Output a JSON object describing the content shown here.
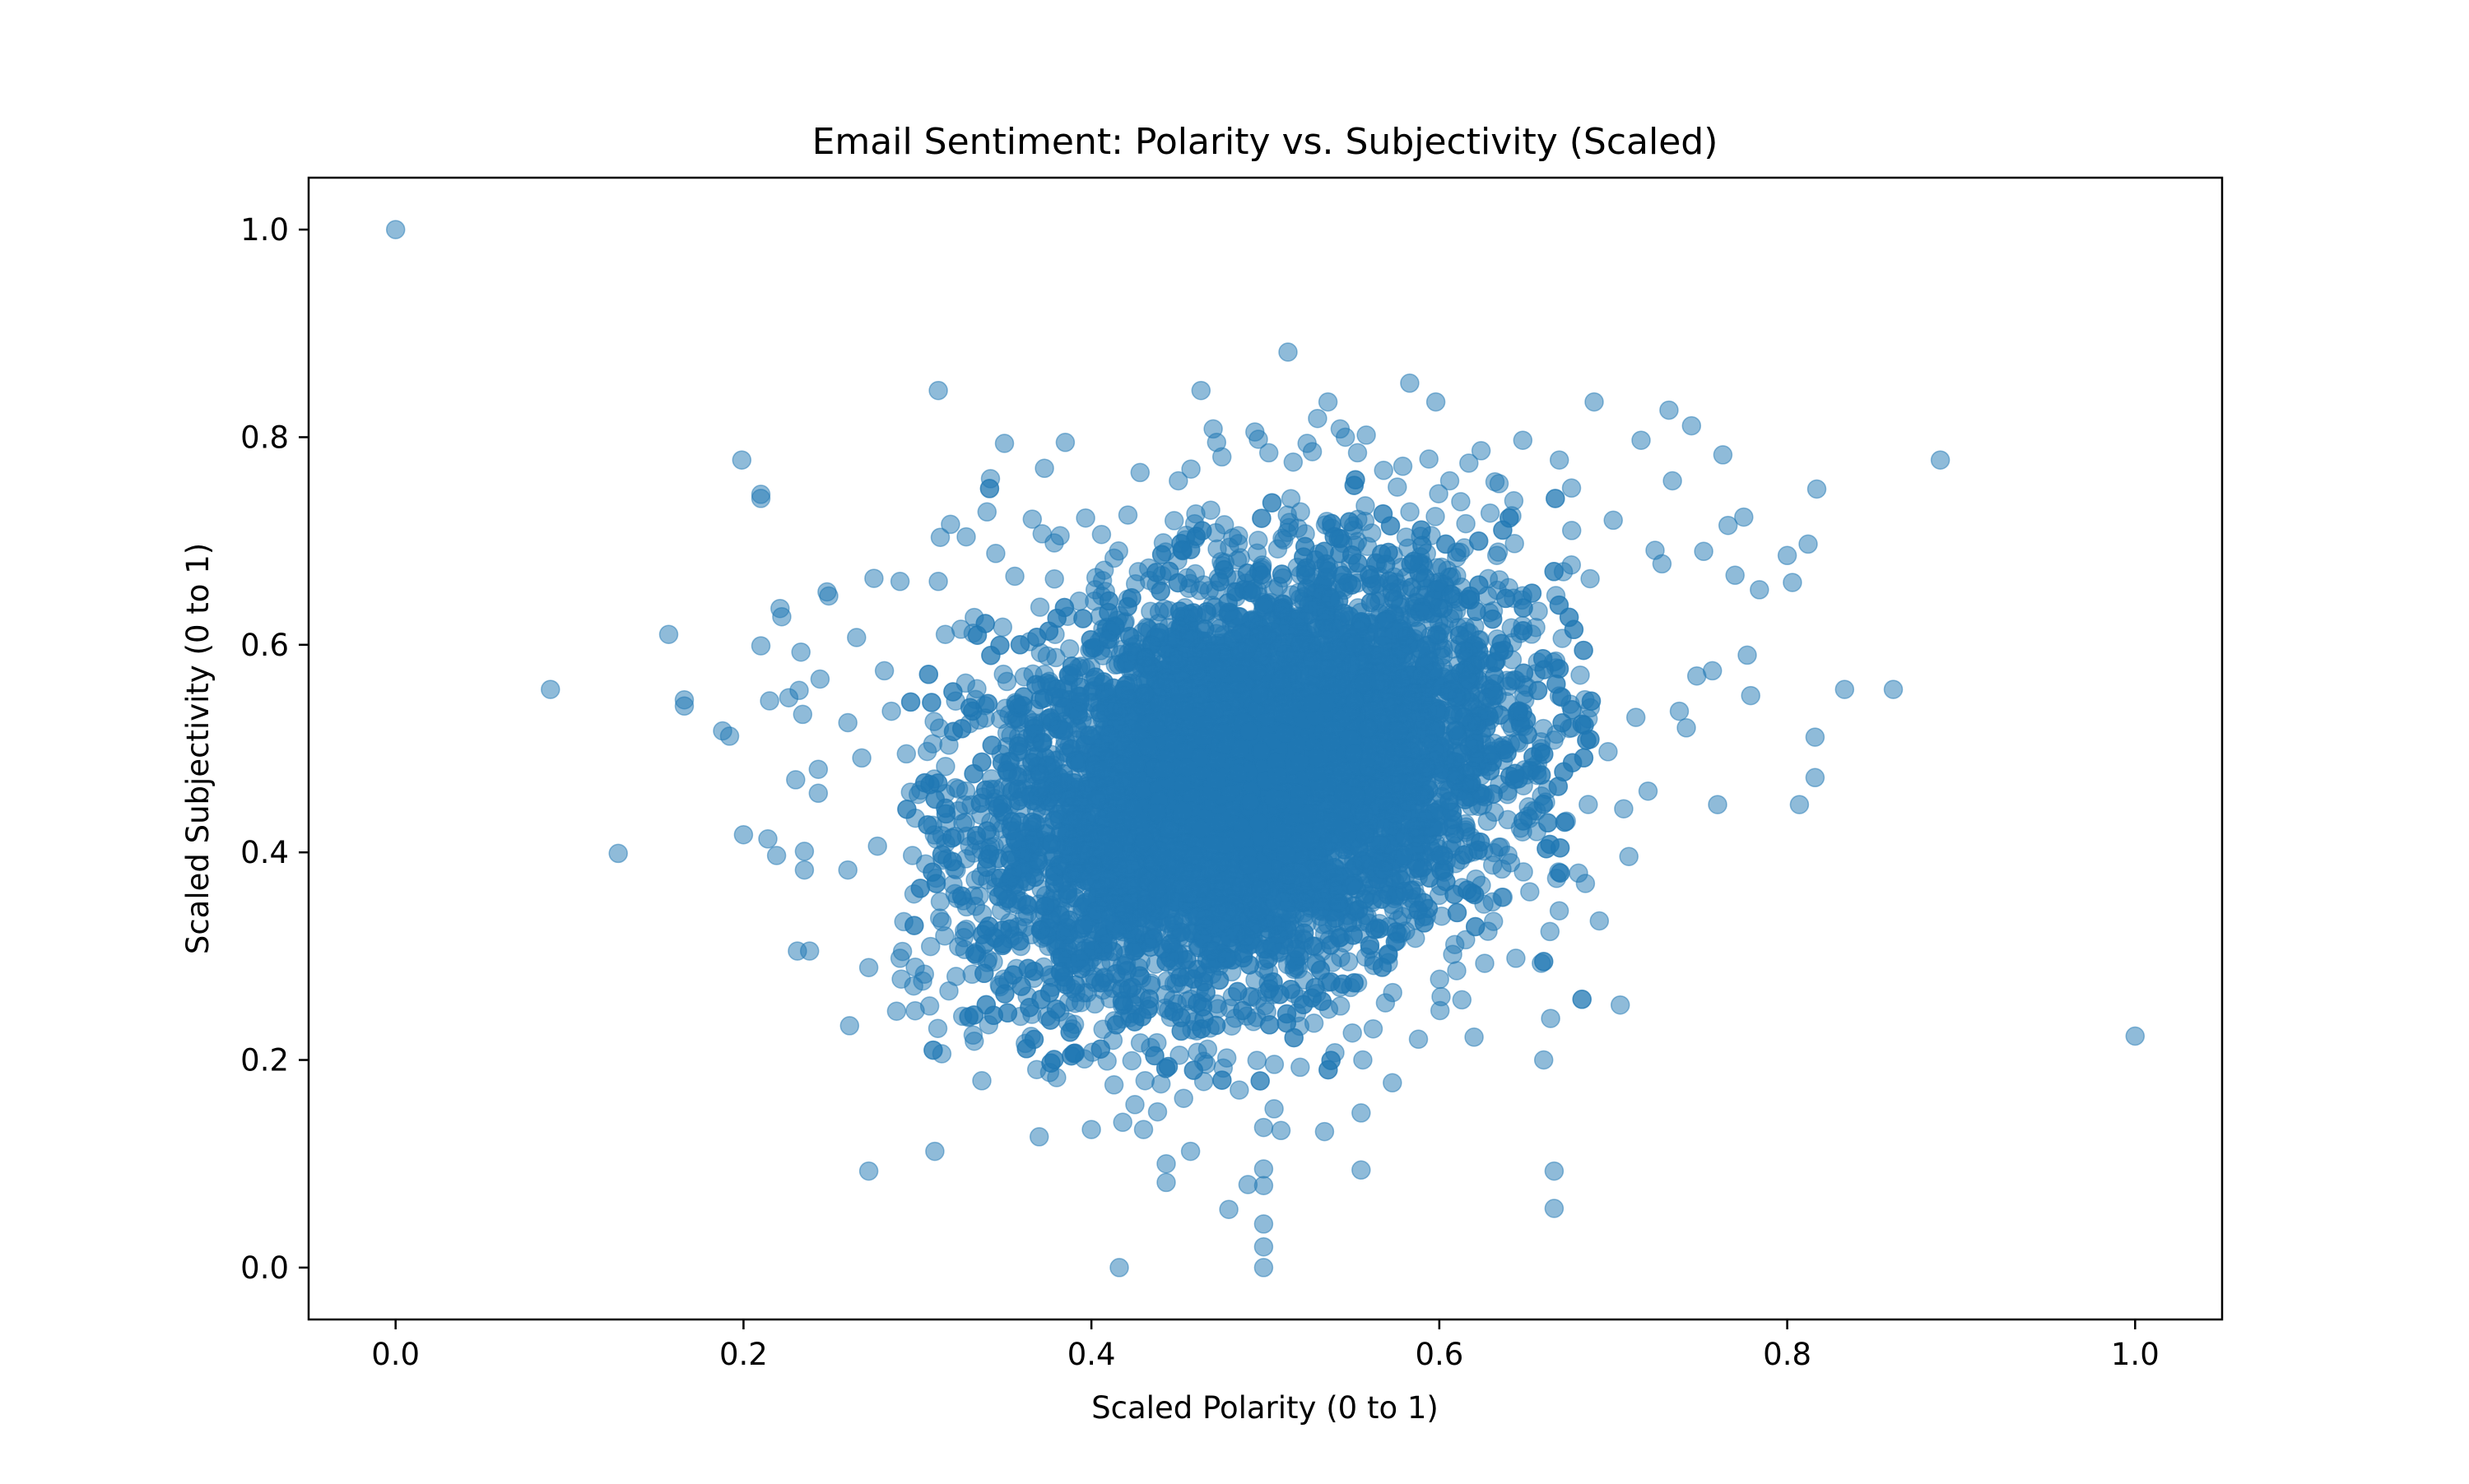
{
  "chart_data": {
    "type": "scatter",
    "title": "Email Sentiment: Polarity vs. Subjectivity (Scaled)",
    "xlabel": "Scaled Polarity (0 to 1)",
    "ylabel": "Scaled Subjectivity (0 to 1)",
    "xlim": [
      -0.05,
      1.05
    ],
    "ylim": [
      -0.05,
      1.05
    ],
    "xticks": [
      0.0,
      0.2,
      0.4,
      0.6,
      0.8,
      1.0
    ],
    "xtick_labels": [
      "0.0",
      "0.2",
      "0.4",
      "0.6",
      "0.8",
      "1.0"
    ],
    "yticks": [
      0.0,
      0.2,
      0.4,
      0.6,
      0.8,
      1.0
    ],
    "ytick_labels": [
      "0.0",
      "0.2",
      "0.4",
      "0.6",
      "0.8",
      "1.0"
    ],
    "grid": false,
    "legend": "none",
    "marker_color": "#1f77b4",
    "marker_alpha": 0.5,
    "dense_cluster": {
      "polarity_mean": 0.49,
      "subjectivity_mean": 0.47,
      "polarity_std": 0.075,
      "subjectivity_std": 0.1,
      "correlation": 0.3,
      "approx_point_count": 9000
    },
    "points": [
      [
        0.0,
        1.0
      ],
      [
        0.089,
        0.557
      ],
      [
        0.128,
        0.399
      ],
      [
        0.157,
        0.61
      ],
      [
        0.166,
        0.547
      ],
      [
        0.166,
        0.541
      ],
      [
        0.188,
        0.517
      ],
      [
        0.192,
        0.512
      ],
      [
        0.199,
        0.778
      ],
      [
        0.2,
        0.417
      ],
      [
        0.21,
        0.745
      ],
      [
        0.21,
        0.741
      ],
      [
        0.21,
        0.599
      ],
      [
        0.214,
        0.413
      ],
      [
        0.215,
        0.546
      ],
      [
        0.219,
        0.397
      ],
      [
        0.221,
        0.635
      ],
      [
        0.222,
        0.627
      ],
      [
        0.226,
        0.549
      ],
      [
        0.23,
        0.47
      ],
      [
        0.231,
        0.305
      ],
      [
        0.232,
        0.556
      ],
      [
        0.233,
        0.593
      ],
      [
        0.234,
        0.533
      ],
      [
        0.235,
        0.401
      ],
      [
        0.235,
        0.383
      ],
      [
        0.238,
        0.305
      ],
      [
        0.243,
        0.48
      ],
      [
        0.243,
        0.457
      ],
      [
        0.244,
        0.567
      ],
      [
        0.248,
        0.651
      ],
      [
        0.249,
        0.647
      ],
      [
        0.26,
        0.525
      ],
      [
        0.26,
        0.383
      ],
      [
        0.261,
        0.233
      ],
      [
        0.265,
        0.607
      ],
      [
        0.268,
        0.491
      ],
      [
        0.272,
        0.093
      ],
      [
        0.272,
        0.289
      ],
      [
        0.275,
        0.664
      ],
      [
        0.277,
        0.406
      ],
      [
        0.281,
        0.575
      ],
      [
        0.285,
        0.536
      ],
      [
        0.288,
        0.247
      ],
      [
        0.29,
        0.661
      ],
      [
        0.29,
        0.298
      ],
      [
        0.296,
        0.458
      ],
      [
        0.298,
        0.36
      ],
      [
        0.303,
        0.276
      ],
      [
        0.307,
        0.252
      ],
      [
        0.31,
        0.112
      ],
      [
        0.312,
        0.845
      ],
      [
        0.312,
        0.661
      ],
      [
        0.314,
        0.206
      ],
      [
        0.316,
        0.61
      ],
      [
        0.319,
        0.716
      ],
      [
        0.325,
        0.615
      ],
      [
        0.328,
        0.704
      ],
      [
        0.33,
        0.524
      ],
      [
        0.332,
        0.224
      ],
      [
        0.334,
        0.304
      ],
      [
        0.337,
        0.18
      ],
      [
        0.34,
        0.728
      ],
      [
        0.342,
        0.76
      ],
      [
        0.345,
        0.688
      ],
      [
        0.349,
        0.617
      ],
      [
        0.35,
        0.794
      ],
      [
        0.352,
        0.276
      ],
      [
        0.356,
        0.666
      ],
      [
        0.362,
        0.216
      ],
      [
        0.366,
        0.721
      ],
      [
        0.37,
        0.126
      ],
      [
        0.373,
        0.77
      ],
      [
        0.376,
        0.188
      ],
      [
        0.38,
        0.183
      ],
      [
        0.382,
        0.705
      ],
      [
        0.385,
        0.795
      ],
      [
        0.389,
        0.23
      ],
      [
        0.393,
        0.642
      ],
      [
        0.396,
        0.201
      ],
      [
        0.4,
        0.133
      ],
      [
        0.402,
        0.254
      ],
      [
        0.406,
        0.647
      ],
      [
        0.409,
        0.199
      ],
      [
        0.413,
        0.176
      ],
      [
        0.416,
        0.0
      ],
      [
        0.418,
        0.14
      ],
      [
        0.421,
        0.725
      ],
      [
        0.425,
        0.157
      ],
      [
        0.428,
        0.766
      ],
      [
        0.43,
        0.133
      ],
      [
        0.434,
        0.212
      ],
      [
        0.438,
        0.15
      ],
      [
        0.44,
        0.177
      ],
      [
        0.443,
        0.1
      ],
      [
        0.443,
        0.082
      ],
      [
        0.447,
        0.258
      ],
      [
        0.45,
        0.758
      ],
      [
        0.453,
        0.163
      ],
      [
        0.457,
        0.112
      ],
      [
        0.46,
        0.726
      ],
      [
        0.463,
        0.845
      ],
      [
        0.466,
        0.196
      ],
      [
        0.47,
        0.808
      ],
      [
        0.472,
        0.795
      ],
      [
        0.475,
        0.781
      ],
      [
        0.479,
        0.056
      ],
      [
        0.481,
        0.261
      ],
      [
        0.485,
        0.171
      ],
      [
        0.49,
        0.08
      ],
      [
        0.494,
        0.805
      ],
      [
        0.496,
        0.798
      ],
      [
        0.499,
        0.135
      ],
      [
        0.499,
        0.095
      ],
      [
        0.499,
        0.079
      ],
      [
        0.499,
        0.042
      ],
      [
        0.499,
        0.02
      ],
      [
        0.499,
        0.0
      ],
      [
        0.502,
        0.785
      ],
      [
        0.505,
        0.153
      ],
      [
        0.509,
        0.132
      ],
      [
        0.513,
        0.882
      ],
      [
        0.516,
        0.776
      ],
      [
        0.52,
        0.193
      ],
      [
        0.524,
        0.794
      ],
      [
        0.527,
        0.786
      ],
      [
        0.53,
        0.818
      ],
      [
        0.534,
        0.131
      ],
      [
        0.536,
        0.834
      ],
      [
        0.54,
        0.207
      ],
      [
        0.543,
        0.808
      ],
      [
        0.546,
        0.8
      ],
      [
        0.55,
        0.226
      ],
      [
        0.553,
        0.785
      ],
      [
        0.555,
        0.149
      ],
      [
        0.555,
        0.094
      ],
      [
        0.556,
        0.2
      ],
      [
        0.558,
        0.802
      ],
      [
        0.562,
        0.23
      ],
      [
        0.568,
        0.768
      ],
      [
        0.573,
        0.178
      ],
      [
        0.579,
        0.772
      ],
      [
        0.583,
        0.852
      ],
      [
        0.588,
        0.22
      ],
      [
        0.594,
        0.779
      ],
      [
        0.598,
        0.834
      ],
      [
        0.601,
        0.261
      ],
      [
        0.606,
        0.758
      ],
      [
        0.61,
        0.286
      ],
      [
        0.613,
        0.258
      ],
      [
        0.617,
        0.775
      ],
      [
        0.62,
        0.222
      ],
      [
        0.624,
        0.787
      ],
      [
        0.628,
        0.324
      ],
      [
        0.632,
        0.757
      ],
      [
        0.636,
        0.384
      ],
      [
        0.641,
        0.39
      ],
      [
        0.644,
        0.298
      ],
      [
        0.648,
        0.797
      ],
      [
        0.652,
        0.362
      ],
      [
        0.656,
        0.42
      ],
      [
        0.66,
        0.2
      ],
      [
        0.664,
        0.24
      ],
      [
        0.666,
        0.093
      ],
      [
        0.666,
        0.057
      ],
      [
        0.669,
        0.778
      ],
      [
        0.673,
        0.43
      ],
      [
        0.676,
        0.751
      ],
      [
        0.68,
        0.38
      ],
      [
        0.684,
        0.37
      ],
      [
        0.689,
        0.834
      ],
      [
        0.692,
        0.334
      ],
      [
        0.697,
        0.497
      ],
      [
        0.7,
        0.72
      ],
      [
        0.704,
        0.253
      ],
      [
        0.706,
        0.442
      ],
      [
        0.709,
        0.396
      ],
      [
        0.713,
        0.53
      ],
      [
        0.716,
        0.797
      ],
      [
        0.72,
        0.459
      ],
      [
        0.724,
        0.691
      ],
      [
        0.728,
        0.678
      ],
      [
        0.732,
        0.826
      ],
      [
        0.734,
        0.758
      ],
      [
        0.738,
        0.536
      ],
      [
        0.742,
        0.52
      ],
      [
        0.745,
        0.811
      ],
      [
        0.748,
        0.57
      ],
      [
        0.752,
        0.69
      ],
      [
        0.757,
        0.575
      ],
      [
        0.76,
        0.446
      ],
      [
        0.763,
        0.783
      ],
      [
        0.766,
        0.715
      ],
      [
        0.77,
        0.667
      ],
      [
        0.775,
        0.723
      ],
      [
        0.777,
        0.59
      ],
      [
        0.779,
        0.551
      ],
      [
        0.784,
        0.653
      ],
      [
        0.8,
        0.686
      ],
      [
        0.803,
        0.66
      ],
      [
        0.807,
        0.446
      ],
      [
        0.812,
        0.697
      ],
      [
        0.816,
        0.511
      ],
      [
        0.816,
        0.472
      ],
      [
        0.817,
        0.75
      ],
      [
        0.833,
        0.557
      ],
      [
        0.861,
        0.557
      ],
      [
        0.888,
        0.778
      ],
      [
        1.0,
        0.223
      ]
    ]
  }
}
